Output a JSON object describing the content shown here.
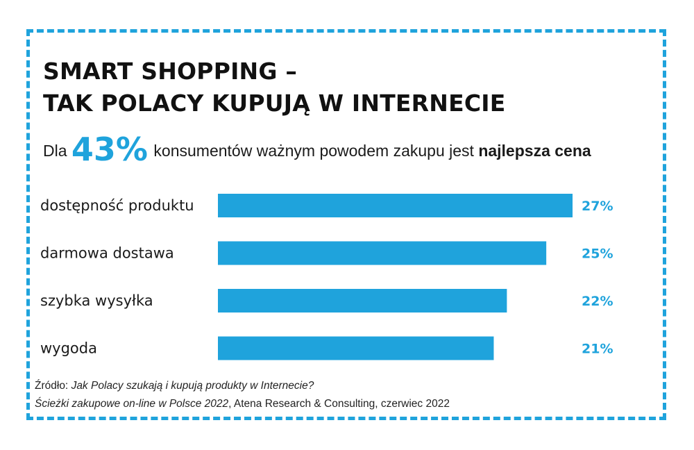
{
  "title_line1": "SMART SHOPPING –",
  "title_line2": "TAK POLACY KUPUJĄ W INTERNECIE",
  "headline": {
    "prefix": "Dla",
    "value": "43%",
    "middle": "konsumentów ważnym powodem zakupu jest",
    "emphasis": "najlepsza cena"
  },
  "accent_color": "#1fa3dc",
  "chart_data": {
    "type": "bar",
    "orientation": "horizontal",
    "categories": [
      "dostępność produktu",
      "darmowa dostawa",
      "szybka wysyłka",
      "wygoda"
    ],
    "values": [
      27,
      25,
      22,
      21
    ],
    "value_labels": [
      "27%",
      "25%",
      "22%",
      "21%"
    ],
    "unit": "%",
    "xlim": [
      0,
      27
    ],
    "grid": false,
    "legend": "none"
  },
  "source": {
    "label": "Źródło:",
    "line1_italic": "Jak Polacy szukają i kupują produkty w Internecie?",
    "line2_italic": "Ścieżki zakupowe on-line w Polsce 2022",
    "line2_rest": ", Atena Research & Consulting, czerwiec 2022"
  }
}
